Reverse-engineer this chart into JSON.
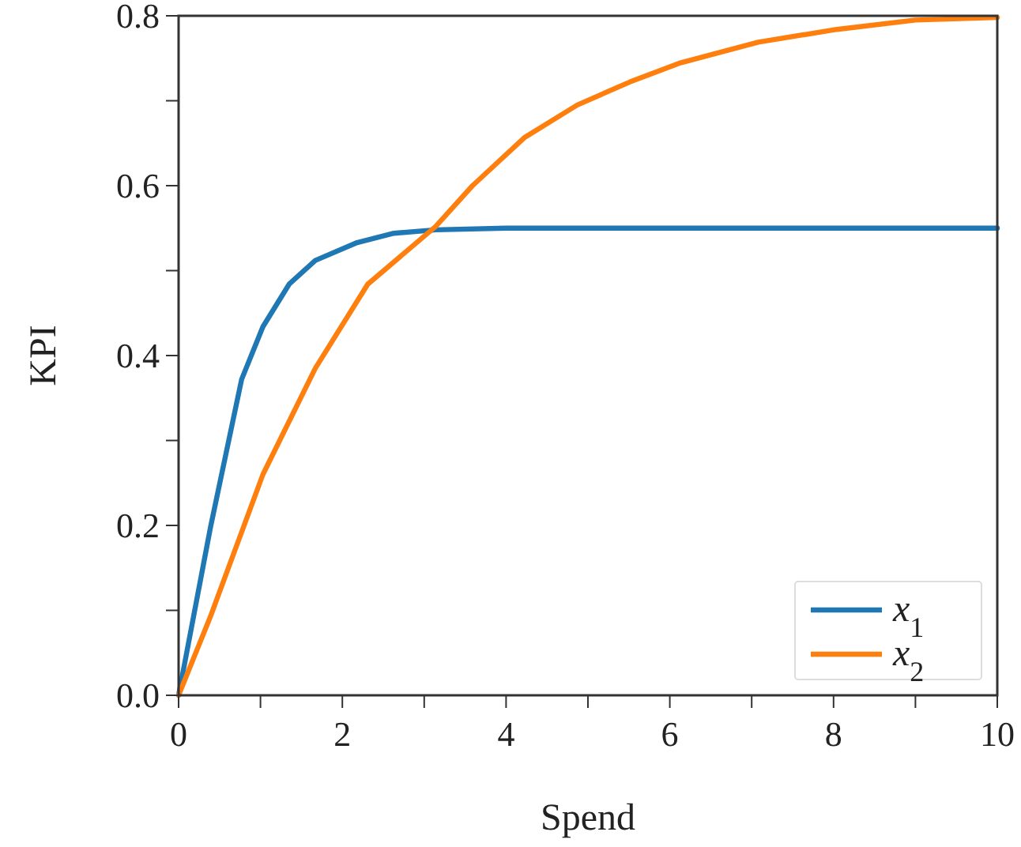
{
  "chart_data": {
    "type": "line",
    "xlabel": "Spend",
    "ylabel": "KPI",
    "xlim": [
      0,
      10
    ],
    "ylim": [
      0,
      0.8
    ],
    "xticks": [
      0,
      {
        "value": 1,
        "label": null
      },
      2,
      {
        "value": 3,
        "label": null
      },
      4,
      {
        "value": 5,
        "label": null
      },
      6,
      {
        "value": 7,
        "label": null
      },
      8,
      {
        "value": 9,
        "label": null
      },
      10
    ],
    "yticks": [
      {
        "value": 0,
        "label": "0.0"
      },
      {
        "value": 0.1,
        "label": null
      },
      0.2,
      {
        "value": 0.3,
        "label": null
      },
      0.4,
      {
        "value": 0.5,
        "label": null
      },
      0.6,
      {
        "value": 0.7,
        "label": null
      },
      0.8
    ],
    "grid": false,
    "legend": "bottom right",
    "marker": "none",
    "line_style": "solid",
    "series": [
      {
        "name": "x$_{1}$",
        "color": "#1f77b4",
        "x": [
          0,
          0.39,
          0.58,
          0.77,
          1.03,
          1.35,
          1.67,
          2.18,
          2.63,
          3.14,
          4,
          6,
          8,
          10
        ],
        "values": [
          0,
          0.198,
          0.285,
          0.372,
          0.434,
          0.484,
          0.512,
          0.533,
          0.544,
          0.548,
          0.55,
          0.55,
          0.55,
          0.55
        ]
      },
      {
        "name": "x$_{2}$",
        "color": "#ff7f0e",
        "x": [
          0,
          0.39,
          1.03,
          1.67,
          2.31,
          3.14,
          3.59,
          4.23,
          4.87,
          5.51,
          6.11,
          7.08,
          8.04,
          9,
          10
        ],
        "values": [
          0,
          0.093,
          0.26,
          0.385,
          0.484,
          0.552,
          0.6,
          0.657,
          0.695,
          0.722,
          0.744,
          0.769,
          0.784,
          0.795,
          0.798
        ]
      }
    ]
  }
}
